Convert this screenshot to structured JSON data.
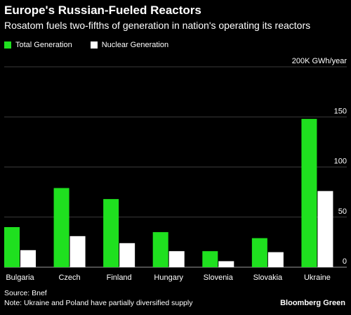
{
  "title": "Europe's Russian-Fueled Reactors",
  "subtitle": "Rosatom fuels two-fifths of generation in nation's operating its reactors",
  "legend": [
    {
      "label": "Total Generation",
      "color": "#1fe01f"
    },
    {
      "label": "Nuclear Generation",
      "color": "#ffffff"
    }
  ],
  "source": "Source: Bnef",
  "note": "Note: Ukraine and Poland have partially diversified supply",
  "brand": "Bloomberg Green",
  "chart_data": {
    "type": "bar",
    "categories": [
      "Bulgaria",
      "Czech",
      "Finland",
      "Hungary",
      "Slovenia",
      "Slovakia",
      "Ukraine"
    ],
    "series": [
      {
        "name": "Total Generation",
        "color": "#1fe01f",
        "values": [
          40,
          79,
          68,
          35,
          16,
          29,
          148
        ]
      },
      {
        "name": "Nuclear Generation",
        "color": "#ffffff",
        "values": [
          17,
          31,
          24,
          16,
          6,
          15,
          76
        ]
      }
    ],
    "ylim": [
      0,
      200
    ],
    "yticks": [
      0,
      50,
      100,
      150,
      200
    ],
    "ytick_labels": [
      "0",
      "50",
      "100",
      "150",
      "200K GWh/year"
    ],
    "ylabel": "",
    "xlabel": "",
    "grid": true,
    "legend_position": "top-left"
  }
}
